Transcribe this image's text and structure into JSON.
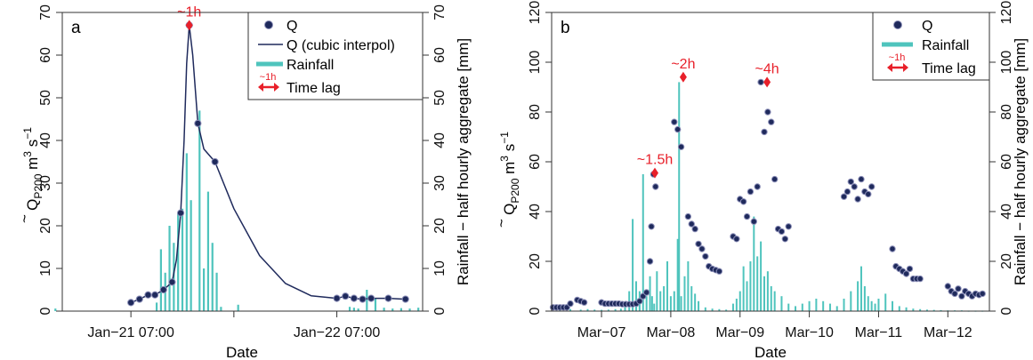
{
  "colors": {
    "q_points": "#1f2a5c",
    "q_point_edge": "#8c8fb8",
    "q_line": "#1f2a5c",
    "rainfall": "#4fc4bd",
    "time_lag": "#e8202a",
    "axis": "#333333"
  },
  "chart_data": [
    {
      "panel_label": "a",
      "type": "line",
      "xlabel": "Date",
      "ylabel_left_main": "Q",
      "ylabel_left_sub": "P200",
      "ylabel_left_unit": "m",
      "ylabel_left_unit_exp": "3",
      "ylabel_left_unit_s": "s",
      "ylabel_left_unit_s_exp": "−1",
      "ylabel_right": "Rainfall − half hourly aggregate [mm]",
      "x_axis_unit": "hours since Jan-20 19:00",
      "xlim": [
        0,
        42
      ],
      "ylim": [
        0,
        70
      ],
      "ylim_right": [
        0,
        70
      ],
      "x_ticks": [
        {
          "x": 8,
          "label": "Jan−21 07:00"
        },
        {
          "x": 20,
          "label": ""
        },
        {
          "x": 32,
          "label": "Jan−22 07:00"
        }
      ],
      "y_ticks": [
        0,
        10,
        20,
        30,
        40,
        50,
        60,
        70
      ],
      "y_ticks_right": [
        0,
        10,
        20,
        30,
        40,
        50,
        60,
        70
      ],
      "legend": {
        "placement": "top-right",
        "q": "Q",
        "q_interp": "Q (cubic interpol)",
        "rainfall": "Rainfall",
        "time_lag": "Time lag",
        "time_lag_tag": "~1h"
      },
      "series": [
        {
          "name": "Q",
          "kind": "points",
          "x": [
            8.0,
            9.0,
            10.0,
            10.8,
            11.8,
            12.8,
            13.8,
            14.8,
            15.8,
            17.8,
            32.0,
            33.0,
            34.0,
            35.0,
            36.0,
            38.0,
            40.0
          ],
          "y": [
            2.0,
            2.8,
            3.8,
            3.8,
            5.0,
            6.8,
            23.0,
            67.0,
            44.0,
            35.0,
            3.0,
            3.5,
            3.0,
            2.8,
            3.0,
            3.0,
            2.8
          ]
        },
        {
          "name": "Q (cubic interpol)",
          "kind": "line",
          "x": [
            8.0,
            9.0,
            10.0,
            10.8,
            11.8,
            12.8,
            13.3,
            13.8,
            14.2,
            14.5,
            14.8,
            15.2,
            15.8,
            16.5,
            17.8,
            20.0,
            23.0,
            26.0,
            29.0,
            32.0,
            33.0,
            34.0,
            35.0,
            36.0,
            38.0,
            40.0
          ],
          "y": [
            2.0,
            2.8,
            3.8,
            3.8,
            5.0,
            6.8,
            12.0,
            23.0,
            40.0,
            58.0,
            67.0,
            60.0,
            44.0,
            38.0,
            35.0,
            24.0,
            13.0,
            6.5,
            3.6,
            3.0,
            3.5,
            3.0,
            2.8,
            3.0,
            3.0,
            2.8
          ]
        },
        {
          "name": "Rainfall",
          "kind": "bars",
          "x": [
            -0.8,
            11.0,
            11.5,
            12.0,
            12.5,
            13.0,
            13.5,
            14.0,
            14.5,
            15.0,
            16.0,
            16.5,
            17.0,
            17.5,
            18.0,
            18.5,
            20.5,
            33.5,
            34.0,
            34.5,
            35.5,
            36.5,
            37.5,
            38.5,
            39.5,
            40.5,
            41.5
          ],
          "y": [
            0.6,
            2.0,
            14.5,
            9.0,
            20.0,
            16.0,
            23.0,
            24.0,
            37.0,
            26.0,
            47.0,
            10.0,
            28.0,
            16.0,
            9.0,
            1.0,
            1.5,
            1.0,
            0.8,
            0.6,
            5.0,
            3.0,
            0.8,
            0.6,
            0.7,
            0.6,
            0.8
          ]
        }
      ],
      "annotations": [
        {
          "text": "~1h",
          "x": 14.8,
          "y": 67
        }
      ]
    },
    {
      "panel_label": "b",
      "type": "scatter",
      "xlabel": "Date",
      "ylabel_left_main": "Q",
      "ylabel_left_sub": "P200",
      "ylabel_left_unit": "m",
      "ylabel_left_unit_exp": "3",
      "ylabel_left_unit_s": "s",
      "ylabel_left_unit_s_exp": "−1",
      "ylabel_right": "Rainfall − half hourly aggregate [mm]",
      "x_axis_unit": "days since Mar-07 00:00",
      "xlim": [
        -0.72,
        5.6
      ],
      "ylim": [
        0,
        120
      ],
      "ylim_right": [
        0,
        120
      ],
      "x_ticks": [
        {
          "x": 0,
          "label": "Mar−07"
        },
        {
          "x": 1,
          "label": "Mar−08"
        },
        {
          "x": 2,
          "label": "Mar−09"
        },
        {
          "x": 3,
          "label": "Mar−10"
        },
        {
          "x": 4,
          "label": "Mar−11"
        },
        {
          "x": 5,
          "label": "Mar−12"
        }
      ],
      "y_ticks": [
        0,
        20,
        40,
        60,
        80,
        100,
        120
      ],
      "y_ticks_right": [
        0,
        20,
        40,
        60,
        80,
        100,
        120
      ],
      "legend": {
        "placement": "top-right",
        "q": "Q",
        "rainfall": "Rainfall",
        "time_lag": "Time lag",
        "time_lag_tag": "~1h"
      },
      "series": [
        {
          "name": "Q",
          "kind": "points",
          "x": [
            -0.7,
            -0.65,
            -0.6,
            -0.55,
            -0.5,
            -0.45,
            -0.35,
            -0.3,
            -0.25,
            0.0,
            0.05,
            0.1,
            0.15,
            0.2,
            0.25,
            0.3,
            0.35,
            0.4,
            0.45,
            0.5,
            0.55,
            0.6,
            0.65,
            0.7,
            0.72,
            0.75,
            0.78,
            1.05,
            1.1,
            1.15,
            1.25,
            1.3,
            1.35,
            1.4,
            1.45,
            1.5,
            1.55,
            1.6,
            1.65,
            1.7,
            1.9,
            1.95,
            2.0,
            2.05,
            2.1,
            2.15,
            2.2,
            2.25,
            2.3,
            2.35,
            2.4,
            2.45,
            2.5,
            2.55,
            2.6,
            2.65,
            2.7,
            3.5,
            3.55,
            3.6,
            3.65,
            3.7,
            3.75,
            3.8,
            3.85,
            3.9,
            4.2,
            4.25,
            4.3,
            4.35,
            4.4,
            4.45,
            4.5,
            4.55,
            4.6,
            5.0,
            5.05,
            5.1,
            5.15,
            5.2,
            5.25,
            5.3,
            5.35,
            5.4,
            5.45,
            5.5
          ],
          "y": [
            1.5,
            1.5,
            1.5,
            1.5,
            1.5,
            3.0,
            4.5,
            4.0,
            3.5,
            3.5,
            3.0,
            3.0,
            3.0,
            3.0,
            3.0,
            2.8,
            2.8,
            2.8,
            2.8,
            3.0,
            4.0,
            6.0,
            7.5,
            20.0,
            34.0,
            55.0,
            50.0,
            76.0,
            73.0,
            66.0,
            38.0,
            35.0,
            33.0,
            27.0,
            25.0,
            22.0,
            18.0,
            17.0,
            16.5,
            16.0,
            30.0,
            29.0,
            45.0,
            44.0,
            38.0,
            48.0,
            36.0,
            50.0,
            92.0,
            72.0,
            80.0,
            76.0,
            53.0,
            33.0,
            32.0,
            29.0,
            34.0,
            46.0,
            48.0,
            52.0,
            50.0,
            45.0,
            53.0,
            48.0,
            47.0,
            50.0,
            25.0,
            18.0,
            17.0,
            16.0,
            15.0,
            17.0,
            13.0,
            13.0,
            13.0,
            10.0,
            8.0,
            7.0,
            9.0,
            6.0,
            8.0,
            7.0,
            6.0,
            7.0,
            6.5,
            7.0
          ]
        },
        {
          "name": "Rainfall",
          "kind": "bars",
          "x": [
            -0.6,
            -0.45,
            -0.3,
            -0.2,
            -0.1,
            0.0,
            0.1,
            0.2,
            0.28,
            0.34,
            0.4,
            0.45,
            0.5,
            0.55,
            0.6,
            0.65,
            0.7,
            0.73,
            0.76,
            0.8,
            0.85,
            0.9,
            0.95,
            1.0,
            1.05,
            1.1,
            1.12,
            1.15,
            1.2,
            1.25,
            1.3,
            1.35,
            1.4,
            1.5,
            1.6,
            1.7,
            1.8,
            1.9,
            1.95,
            2.0,
            2.05,
            2.1,
            2.15,
            2.2,
            2.25,
            2.3,
            2.35,
            2.4,
            2.45,
            2.5,
            2.6,
            2.7,
            2.8,
            2.9,
            3.0,
            3.1,
            3.2,
            3.3,
            3.4,
            3.5,
            3.6,
            3.7,
            3.75,
            3.8,
            3.85,
            3.9,
            3.95,
            4.0,
            4.1,
            4.2,
            4.3,
            4.4,
            4.5,
            4.6,
            4.7,
            4.8,
            4.9,
            5.0,
            5.1,
            5.2,
            5.3,
            5.4,
            5.5
          ],
          "y": [
            1.0,
            0.8,
            0.6,
            0.8,
            0.6,
            0.5,
            0.6,
            0.8,
            1.0,
            2.0,
            8.0,
            37.0,
            12.0,
            8.0,
            55.0,
            6.0,
            14.0,
            6.0,
            3.0,
            16.0,
            8.0,
            10.0,
            20.0,
            6.0,
            8.0,
            29.0,
            92.0,
            6.0,
            14.0,
            20.0,
            10.0,
            7.0,
            4.0,
            1.5,
            1.0,
            0.8,
            0.6,
            3.0,
            5.0,
            8.0,
            18.0,
            12.0,
            20.0,
            38.0,
            22.0,
            28.0,
            14.0,
            16.0,
            10.0,
            8.0,
            6.0,
            3.0,
            2.0,
            3.0,
            4.0,
            5.0,
            4.0,
            3.0,
            2.0,
            5.0,
            8.0,
            12.0,
            18.0,
            10.0,
            6.0,
            4.0,
            3.0,
            5.0,
            7.0,
            4.0,
            2.0,
            1.5,
            1.0,
            0.8,
            0.6,
            0.5,
            0.4,
            0.3,
            0.3,
            0.3,
            0.2,
            0.2,
            0.2
          ]
        }
      ],
      "annotations": [
        {
          "text": "~1.5h",
          "x": 0.77,
          "y": 55.5
        },
        {
          "text": "~2h",
          "x": 1.18,
          "y": 94
        },
        {
          "text": "~4h",
          "x": 2.39,
          "y": 92
        }
      ]
    }
  ]
}
